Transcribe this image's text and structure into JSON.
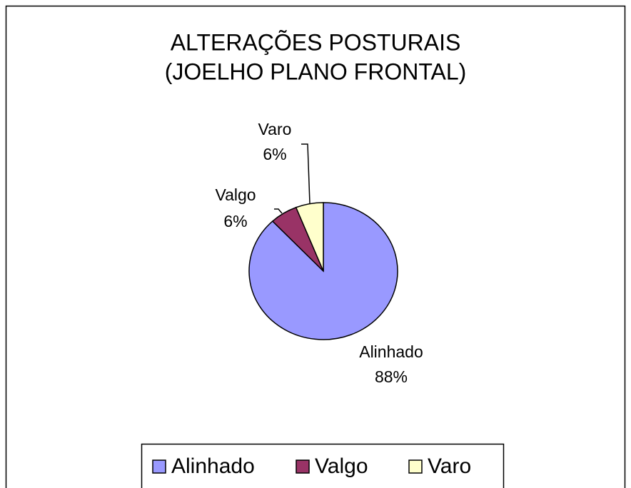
{
  "chart_data": {
    "type": "pie",
    "title": [
      "ALTERAÇÕES POSTURAIS",
      "(JOELHO PLANO FRONTAL)"
    ],
    "categories": [
      "Alinhado",
      "Valgo",
      "Varo"
    ],
    "values": [
      88,
      6,
      6
    ],
    "value_labels": [
      "88%",
      "6%",
      "6%"
    ],
    "colors": [
      "#9999ff",
      "#993366",
      "#ffffcc"
    ],
    "legend": "bottom"
  }
}
